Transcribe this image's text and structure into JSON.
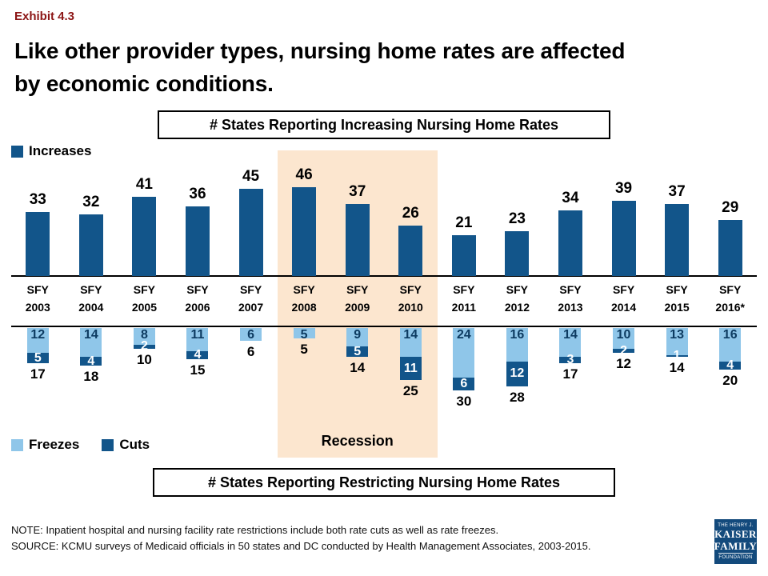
{
  "exhibit_label": "Exhibit 4.3",
  "title": {
    "line1": "Like other provider types, nursing home rates are affected",
    "line2": "by economic conditions."
  },
  "boxes": {
    "increasing": "# States Reporting Increasing Nursing Home Rates",
    "restricting": "# States Reporting Restricting Nursing Home Rates"
  },
  "legend": {
    "increases": "Increases",
    "freezes": "Freezes",
    "cuts": "Cuts"
  },
  "recession_label": "Recession",
  "notes": {
    "note": "NOTE: Inpatient hospital and nursing facility rate restrictions include both rate cuts as well as rate freezes.",
    "source": "SOURCE: KCMU surveys of Medicaid officials in 50 states and DC conducted by Health Management Associates, 2003-2015."
  },
  "logo": {
    "line1": "THE HENRY J.",
    "line2": "KAISER",
    "line3": "FAMILY",
    "line4": "FOUNDATION"
  },
  "colors": {
    "dark_blue": "#12558A",
    "light_blue": "#8FC6E9",
    "recession_band": "#FCE6CF",
    "exhibit_red": "#8C1515",
    "logo_blue": "#134A7C"
  },
  "chart_data": {
    "type": "bar",
    "title_top": "# States Reporting Increasing Nursing Home Rates",
    "title_bottom": "# States Reporting Restricting Nursing Home Rates",
    "categories": [
      "SFY 2003",
      "SFY 2004",
      "SFY 2005",
      "SFY 2006",
      "SFY 2007",
      "SFY 2008",
      "SFY 2009",
      "SFY 2010",
      "SFY 2011",
      "SFY 2012",
      "SFY 2013",
      "SFY 2014",
      "SFY 2015",
      "SFY 2016*"
    ],
    "series": [
      {
        "name": "Increases",
        "direction": "up",
        "values": [
          33,
          32,
          41,
          36,
          45,
          46,
          37,
          26,
          21,
          23,
          34,
          39,
          37,
          29
        ]
      },
      {
        "name": "Freezes",
        "direction": "down",
        "values": [
          12,
          14,
          8,
          11,
          6,
          5,
          9,
          14,
          24,
          16,
          14,
          10,
          13,
          16
        ]
      },
      {
        "name": "Cuts",
        "direction": "down",
        "values": [
          5,
          4,
          2,
          4,
          0,
          0,
          5,
          11,
          6,
          12,
          3,
          2,
          1,
          4
        ]
      }
    ],
    "restricting_totals": [
      17,
      18,
      10,
      15,
      6,
      5,
      14,
      25,
      30,
      28,
      17,
      12,
      14,
      20
    ],
    "recession_span": {
      "from": "SFY 2008",
      "to": "SFY 2010"
    },
    "legend_position": "top-left and bottom-left",
    "grid": false
  }
}
